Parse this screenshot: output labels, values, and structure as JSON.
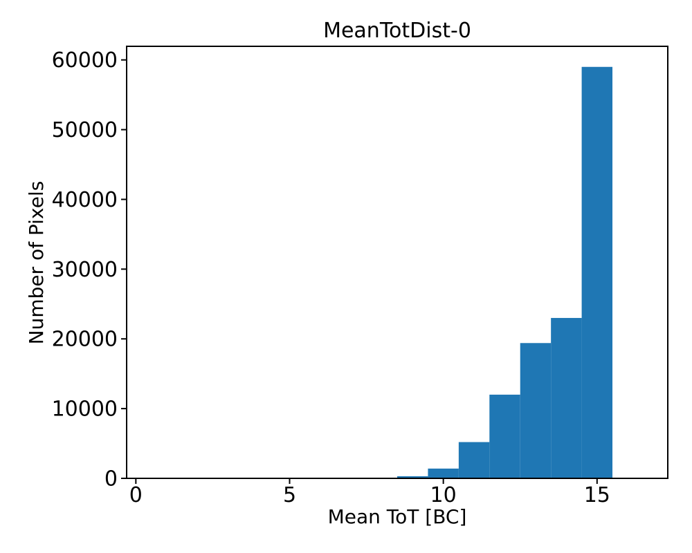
{
  "chart_data": {
    "type": "bar",
    "subtype": "histogram",
    "title": "MeanTotDist-0",
    "xlabel": "Mean ToT [BC]",
    "ylabel": "Number of Pixels",
    "bin_edges": [
      8.5,
      9.5,
      10.5,
      11.5,
      12.5,
      13.5,
      14.5,
      15.5
    ],
    "values": [
      300,
      1400,
      5200,
      12000,
      19400,
      23000,
      59000
    ],
    "bar_color": "#1f77b4",
    "axis_color": "#000000",
    "background_color": "#ffffff",
    "xlim": [
      -0.3,
      17.3
    ],
    "ylim": [
      0,
      61950
    ],
    "xticks": [
      0,
      5,
      10,
      15
    ],
    "yticks": [
      0,
      10000,
      20000,
      30000,
      40000,
      50000,
      60000
    ],
    "grid": false,
    "legend": null
  }
}
